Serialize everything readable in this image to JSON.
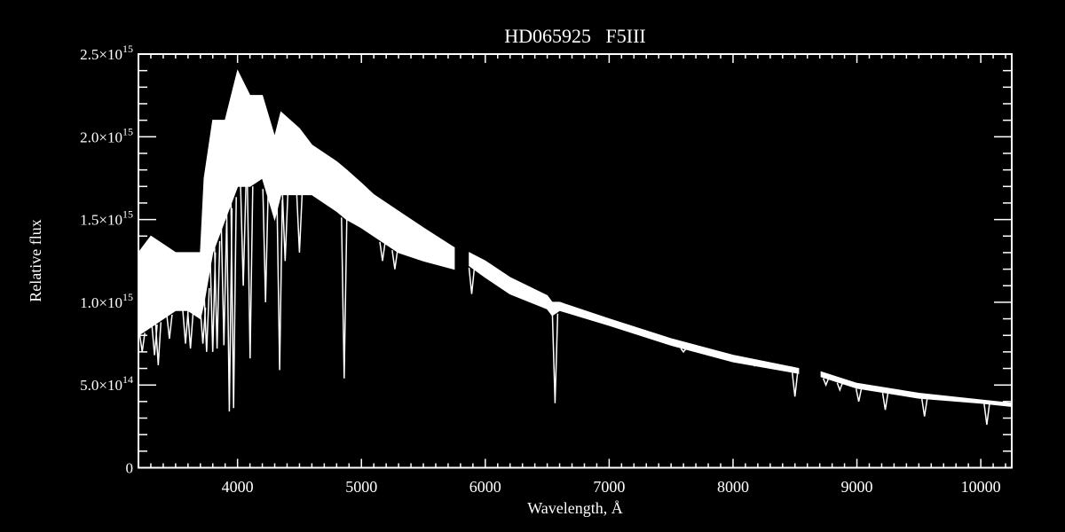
{
  "chart_data": {
    "type": "line",
    "title": "HD065925   F5III",
    "xlabel": "Wavelength, Å",
    "ylabel": "Relative flux",
    "xlim": [
      3200,
      10250
    ],
    "ylim": [
      0,
      2500000000000000.0
    ],
    "grid": false,
    "background": "#000000",
    "line_color": "#ffffff",
    "x_ticks": [
      4000,
      5000,
      6000,
      7000,
      8000,
      9000,
      10000
    ],
    "x_tick_labels": [
      "4000",
      "5000",
      "6000",
      "7000",
      "8000",
      "9000",
      "10000"
    ],
    "y_ticks": [
      0,
      500000000000000.0,
      1000000000000000.0,
      1500000000000000.0,
      2000000000000000.0,
      2500000000000000.0
    ],
    "y_tick_labels": [
      {
        "mantissa": "0",
        "exponent": ""
      },
      {
        "mantissa": "5.0×10",
        "exponent": "14"
      },
      {
        "mantissa": "1.0×10",
        "exponent": "15"
      },
      {
        "mantissa": "1.5×10",
        "exponent": "15"
      },
      {
        "mantissa": "2.0×10",
        "exponent": "15"
      },
      {
        "mantissa": "2.5×10",
        "exponent": "15"
      }
    ],
    "flux_unit": 1000000000000000.0,
    "segments": [
      {
        "points": [
          [
            3200,
            1.3,
            0.8
          ],
          [
            3300,
            1.4,
            0.85
          ],
          [
            3400,
            1.35,
            0.9
          ],
          [
            3500,
            1.3,
            0.95
          ],
          [
            3600,
            1.3,
            0.95
          ],
          [
            3700,
            1.3,
            0.9
          ],
          [
            3730,
            1.75,
            1.0
          ],
          [
            3800,
            2.1,
            1.3
          ],
          [
            3900,
            2.1,
            1.5
          ],
          [
            4000,
            2.4,
            1.7
          ],
          [
            4100,
            2.25,
            1.7
          ],
          [
            4200,
            2.25,
            1.75
          ],
          [
            4300,
            2.0,
            1.5
          ],
          [
            4350,
            2.15,
            1.65
          ],
          [
            4500,
            2.05,
            1.65
          ],
          [
            4600,
            1.95,
            1.65
          ],
          [
            4800,
            1.85,
            1.55
          ],
          [
            4880,
            1.8,
            1.5
          ],
          [
            5000,
            1.72,
            1.45
          ],
          [
            5100,
            1.65,
            1.4
          ],
          [
            5300,
            1.55,
            1.3
          ],
          [
            5500,
            1.45,
            1.25
          ],
          [
            5750,
            1.33,
            1.2
          ]
        ]
      },
      {
        "points": [
          [
            5870,
            1.3,
            1.22
          ],
          [
            6000,
            1.25,
            1.15
          ],
          [
            6200,
            1.15,
            1.05
          ],
          [
            6500,
            1.04,
            0.96
          ],
          [
            6540,
            1.0,
            0.92
          ],
          [
            6600,
            1.0,
            0.95
          ],
          [
            7000,
            0.9,
            0.86
          ],
          [
            7500,
            0.78,
            0.74
          ],
          [
            8000,
            0.68,
            0.64
          ],
          [
            8530,
            0.6,
            0.57
          ]
        ]
      },
      {
        "points": [
          [
            8710,
            0.58,
            0.55
          ],
          [
            9000,
            0.51,
            0.48
          ],
          [
            9500,
            0.45,
            0.42
          ],
          [
            10000,
            0.41,
            0.39
          ],
          [
            10250,
            0.39,
            0.37
          ]
        ]
      }
    ],
    "absorption_lines": [
      [
        3230,
        0.7
      ],
      [
        3330,
        0.68
      ],
      [
        3360,
        0.62
      ],
      [
        3450,
        0.78
      ],
      [
        3580,
        0.75
      ],
      [
        3620,
        0.72
      ],
      [
        3720,
        0.75
      ],
      [
        3750,
        0.7
      ],
      [
        3800,
        0.7
      ],
      [
        3835,
        0.72
      ],
      [
        3890,
        0.74
      ],
      [
        3934,
        0.34
      ],
      [
        3968,
        0.36
      ],
      [
        4046,
        1.1
      ],
      [
        4101,
        0.66
      ],
      [
        4226,
        1.0
      ],
      [
        4340,
        0.59
      ],
      [
        4384,
        1.25
      ],
      [
        4500,
        1.3
      ],
      [
        4861,
        0.54
      ],
      [
        5170,
        1.25
      ],
      [
        5270,
        1.2
      ],
      [
        5890,
        1.05
      ],
      [
        6563,
        0.39
      ],
      [
        7600,
        0.7
      ],
      [
        8190,
        0.62
      ],
      [
        8500,
        0.43
      ],
      [
        8542,
        0.45
      ],
      [
        8662,
        0.48
      ],
      [
        8750,
        0.5
      ],
      [
        8862,
        0.47
      ],
      [
        9015,
        0.4
      ],
      [
        9229,
        0.35
      ],
      [
        9546,
        0.31
      ],
      [
        10049,
        0.26
      ]
    ]
  }
}
